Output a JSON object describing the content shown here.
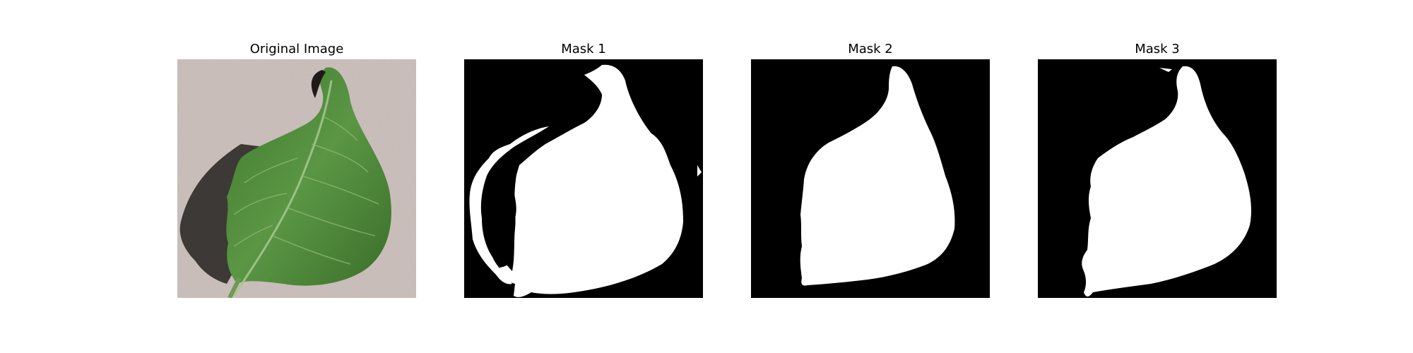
{
  "figure": {
    "panels": [
      {
        "title": "Original Image",
        "kind": "photo"
      },
      {
        "title": "Mask 1",
        "kind": "mask"
      },
      {
        "title": "Mask 2",
        "kind": "mask"
      },
      {
        "title": "Mask 3",
        "kind": "mask"
      }
    ],
    "colors": {
      "background": "#ffffff",
      "mask_background": "#000000",
      "mask_foreground": "#ffffff",
      "photo_background": "#c8bcb8",
      "leaf_green": "#4f8a3a",
      "leaf_shadow": "#2e2a28"
    }
  }
}
